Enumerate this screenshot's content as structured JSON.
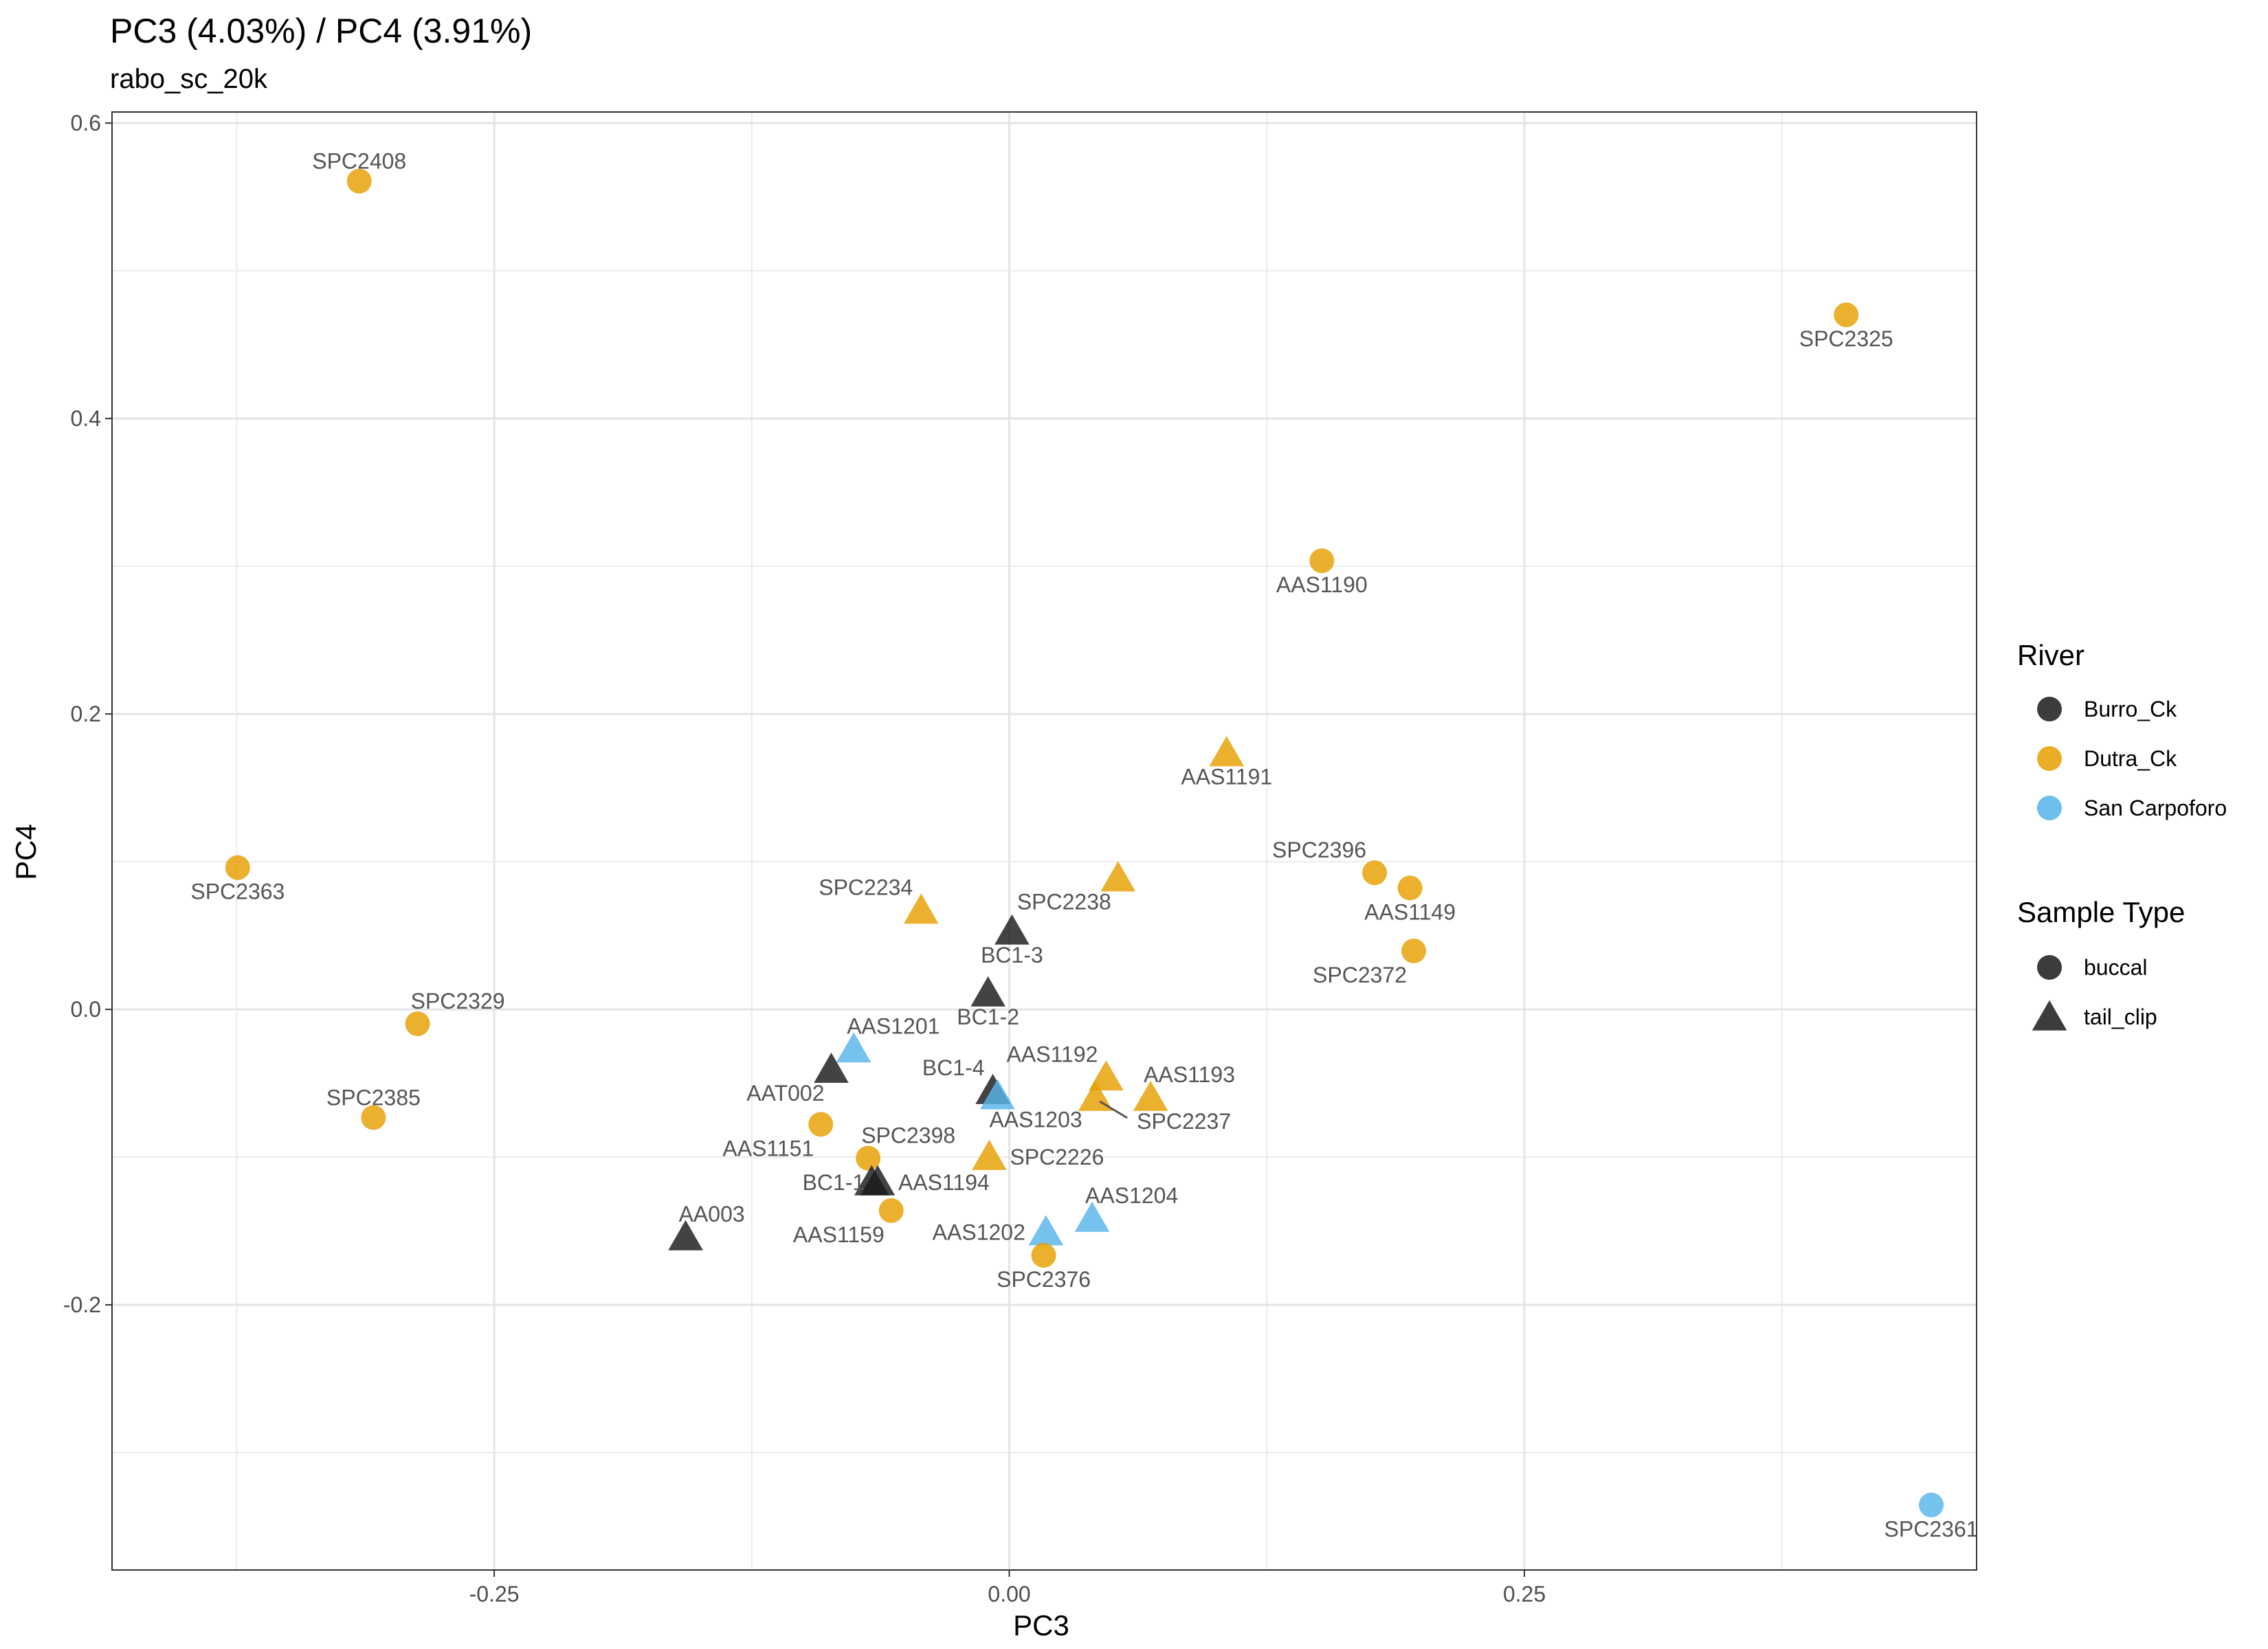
{
  "chart_data": {
    "type": "scatter",
    "title": "PC3 (4.03%) / PC4 (3.91%)",
    "subtitle": "rabo_sc_20k",
    "xlabel": "PC3",
    "ylabel": "PC4",
    "xlim": [
      -0.4355,
      0.4695
    ],
    "ylim": [
      -0.3795,
      0.6075
    ],
    "x_ticks": [
      -0.25,
      0.0,
      0.25
    ],
    "x_tick_labels": [
      "-0.25",
      "0.00",
      "0.25"
    ],
    "y_ticks": [
      -0.2,
      0.0,
      0.2,
      0.4,
      0.6
    ],
    "y_tick_labels": [
      "-0.2",
      "0.0",
      "0.2",
      "0.4",
      "0.6"
    ],
    "grid": true,
    "legend_position": "right",
    "river_legend": {
      "title": "River",
      "items": [
        {
          "name": "Burro_Ck",
          "color": "#1a1a1a"
        },
        {
          "name": "Dutra_Ck",
          "color": "#e69f00"
        },
        {
          "name": "San Carpoforo",
          "color": "#56b4e9"
        }
      ]
    },
    "type_legend": {
      "title": "Sample Type",
      "items": [
        {
          "name": "buccal",
          "shape": "circle"
        },
        {
          "name": "tail_clip",
          "shape": "triangle"
        }
      ]
    },
    "points": [
      {
        "label": "SPC2408",
        "x": -0.3155,
        "y": 0.5607,
        "river": "Dutra_Ck",
        "sample_type": "buccal",
        "label_pos": "above"
      },
      {
        "label": "SPC2325",
        "x": 0.4062,
        "y": 0.4702,
        "river": "Dutra_Ck",
        "sample_type": "buccal",
        "label_pos": "below"
      },
      {
        "label": "AAS1190",
        "x": 0.1517,
        "y": 0.3037,
        "river": "Dutra_Ck",
        "sample_type": "buccal",
        "label_pos": "below"
      },
      {
        "label": "AAS1191",
        "x": 0.1055,
        "y": 0.1738,
        "river": "Dutra_Ck",
        "sample_type": "tail_clip",
        "label_pos": "below"
      },
      {
        "label": "SPC2363",
        "x": -0.3745,
        "y": 0.096,
        "river": "Dutra_Ck",
        "sample_type": "buccal",
        "label_pos": "below"
      },
      {
        "label": "SPC2396",
        "x": 0.1773,
        "y": 0.0925,
        "river": "Dutra_Ck",
        "sample_type": "buccal",
        "label_pos": "above-left"
      },
      {
        "label": "AAS1149",
        "x": 0.1945,
        "y": 0.0822,
        "river": "Dutra_Ck",
        "sample_type": "buccal",
        "label_pos": "below"
      },
      {
        "label": "SPC2238",
        "x": 0.0528,
        "y": 0.0891,
        "river": "Dutra_Ck",
        "sample_type": "tail_clip",
        "label_pos": "below-left"
      },
      {
        "label": "SPC2234",
        "x": -0.0428,
        "y": 0.0672,
        "river": "Dutra_Ck",
        "sample_type": "tail_clip",
        "label_pos": "above-left"
      },
      {
        "label": "BC1-3",
        "x": 0.0013,
        "y": 0.0531,
        "river": "Burro_Ck",
        "sample_type": "tail_clip",
        "label_pos": "below"
      },
      {
        "label": "SPC2372",
        "x": 0.1963,
        "y": 0.0396,
        "river": "Dutra_Ck",
        "sample_type": "buccal",
        "label_pos": "below-left"
      },
      {
        "label": "BC1-2",
        "x": -0.0103,
        "y": 0.0112,
        "river": "Burro_Ck",
        "sample_type": "tail_clip",
        "label_pos": "below"
      },
      {
        "label": "SPC2329",
        "x": -0.2872,
        "y": -0.0097,
        "river": "Dutra_Ck",
        "sample_type": "buccal",
        "label_pos": "above-right"
      },
      {
        "label": "AAS1201",
        "x": -0.0755,
        "y": -0.0267,
        "river": "San Carpoforo",
        "sample_type": "tail_clip",
        "label_pos": "above-right"
      },
      {
        "label": "AAT002",
        "x": -0.0864,
        "y": -0.0405,
        "river": "Burro_Ck",
        "sample_type": "tail_clip",
        "label_pos": "below-left"
      },
      {
        "label": "AAS1192",
        "x": 0.047,
        "y": -0.0457,
        "river": "Dutra_Ck",
        "sample_type": "tail_clip",
        "label_pos": "above-left"
      },
      {
        "label": "BC1-4",
        "x": -0.008,
        "y": -0.0549,
        "river": "Burro_Ck",
        "sample_type": "tail_clip",
        "label_pos": "above-left"
      },
      {
        "label": "AAS1203",
        "x": -0.0057,
        "y": -0.0584,
        "river": "San Carpoforo",
        "sample_type": "tail_clip",
        "label_pos": "below-right"
      },
      {
        "label": "AAS1193",
        "x": 0.0686,
        "y": -0.0595,
        "river": "Dutra_Ck",
        "sample_type": "tail_clip",
        "label_pos": "above-right"
      },
      {
        "label": "SPC2237",
        "x": 0.0419,
        "y": -0.0595,
        "river": "Dutra_Ck",
        "sample_type": "tail_clip",
        "label_pos": "below-right-far"
      },
      {
        "label": "SPC2385",
        "x": -0.3086,
        "y": -0.0732,
        "river": "Dutra_Ck",
        "sample_type": "buccal",
        "label_pos": "above"
      },
      {
        "label": "AAS1151",
        "x": -0.0915,
        "y": -0.0778,
        "river": "Dutra_Ck",
        "sample_type": "buccal",
        "label_pos": "below-left"
      },
      {
        "label": "SPC2226",
        "x": -0.0097,
        "y": -0.0995,
        "river": "Dutra_Ck",
        "sample_type": "tail_clip",
        "label_pos": "right"
      },
      {
        "label": "SPC2398",
        "x": -0.0685,
        "y": -0.1007,
        "river": "Dutra_Ck",
        "sample_type": "buccal",
        "label_pos": "above-right"
      },
      {
        "label": "AAS1194",
        "x": -0.0639,
        "y": -0.1167,
        "river": "Burro_Ck",
        "sample_type": "tail_clip",
        "label_pos": "right"
      },
      {
        "label": "AAS1159",
        "x": -0.0573,
        "y": -0.1362,
        "river": "Dutra_Ck",
        "sample_type": "buccal",
        "label_pos": "below-left"
      },
      {
        "label": "AAS1204",
        "x": 0.0402,
        "y": -0.1414,
        "river": "San Carpoforo",
        "sample_type": "tail_clip",
        "label_pos": "above-right"
      },
      {
        "label": "AAS1202",
        "x": 0.0178,
        "y": -0.1505,
        "river": "San Carpoforo",
        "sample_type": "tail_clip",
        "label_pos": "left"
      },
      {
        "label": "AA003",
        "x": -0.1571,
        "y": -0.1539,
        "river": "Burro_Ck",
        "sample_type": "tail_clip",
        "label_pos": "above-right"
      },
      {
        "label": "SPC2376",
        "x": 0.0167,
        "y": -0.1665,
        "river": "Dutra_Ck",
        "sample_type": "buccal",
        "label_pos": "below"
      },
      {
        "label": "SPC2361",
        "x": 0.4475,
        "y": -0.3355,
        "river": "San Carpoforo",
        "sample_type": "buccal",
        "label_pos": "below"
      },
      {
        "label": "BC1-1",
        "x": -0.0668,
        "y": -0.1167,
        "river": "Burro_Ck",
        "sample_type": "tail_clip",
        "label_pos": "left-only"
      }
    ]
  }
}
